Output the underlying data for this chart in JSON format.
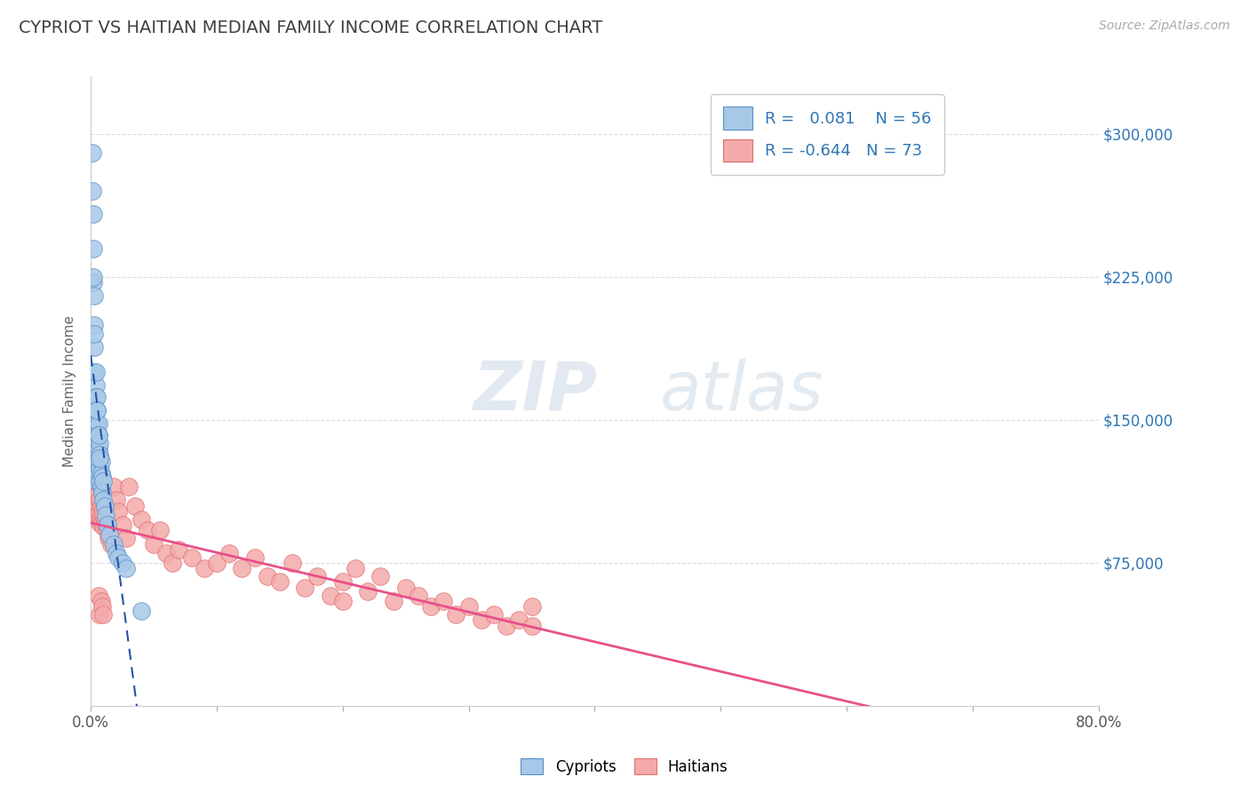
{
  "title": "CYPRIOT VS HAITIAN MEDIAN FAMILY INCOME CORRELATION CHART",
  "source_text": "Source: ZipAtlas.com",
  "ylabel": "Median Family Income",
  "xlim": [
    0.0,
    0.8
  ],
  "ylim": [
    0,
    330000
  ],
  "ytick_right_vals": [
    0,
    75000,
    150000,
    225000,
    300000
  ],
  "ytick_right_labels": [
    "",
    "$75,000",
    "$150,000",
    "$225,000",
    "$300,000"
  ],
  "cypriot_color": "#A8C8E8",
  "haitian_color": "#F4AAAA",
  "cypriot_edge": "#5590C8",
  "haitian_edge": "#E07070",
  "trend_cypriot_color": "#2255AA",
  "trend_haitian_color": "#E8508A",
  "r_cypriot": 0.081,
  "n_cypriot": 56,
  "r_haitian": -0.644,
  "n_haitian": 73,
  "watermark_zip": "ZIP",
  "watermark_atlas": "atlas",
  "background_color": "#FFFFFF",
  "grid_color": "#DDDDDD",
  "axis_label_color": "#666666",
  "right_tick_color": "#2E75B6",
  "title_color": "#404040",
  "legend_color": "#2E75B6",
  "cypriot_x": [
    0.001,
    0.001,
    0.002,
    0.002,
    0.002,
    0.003,
    0.003,
    0.003,
    0.003,
    0.004,
    0.004,
    0.004,
    0.004,
    0.004,
    0.004,
    0.005,
    0.005,
    0.005,
    0.005,
    0.005,
    0.005,
    0.005,
    0.005,
    0.005,
    0.006,
    0.006,
    0.006,
    0.006,
    0.006,
    0.007,
    0.007,
    0.007,
    0.007,
    0.008,
    0.008,
    0.008,
    0.009,
    0.009,
    0.01,
    0.01,
    0.011,
    0.012,
    0.013,
    0.015,
    0.018,
    0.02,
    0.022,
    0.025,
    0.028,
    0.002,
    0.003,
    0.004,
    0.005,
    0.006,
    0.007,
    0.04
  ],
  "cypriot_y": [
    290000,
    270000,
    258000,
    240000,
    222000,
    215000,
    200000,
    188000,
    175000,
    168000,
    162000,
    155000,
    148000,
    142000,
    138000,
    162000,
    155000,
    148000,
    142000,
    138000,
    132000,
    128000,
    122000,
    118000,
    148000,
    142000,
    135000,
    128000,
    122000,
    138000,
    132000,
    125000,
    118000,
    128000,
    122000,
    115000,
    120000,
    112000,
    118000,
    108000,
    105000,
    100000,
    95000,
    90000,
    85000,
    80000,
    78000,
    75000,
    72000,
    225000,
    195000,
    175000,
    155000,
    142000,
    130000,
    50000
  ],
  "haitian_x": [
    0.003,
    0.004,
    0.004,
    0.005,
    0.005,
    0.005,
    0.006,
    0.006,
    0.006,
    0.007,
    0.007,
    0.007,
    0.008,
    0.008,
    0.009,
    0.009,
    0.01,
    0.01,
    0.011,
    0.012,
    0.013,
    0.014,
    0.015,
    0.016,
    0.018,
    0.02,
    0.022,
    0.025,
    0.028,
    0.03,
    0.035,
    0.04,
    0.045,
    0.05,
    0.055,
    0.06,
    0.065,
    0.07,
    0.08,
    0.09,
    0.1,
    0.11,
    0.12,
    0.13,
    0.14,
    0.15,
    0.16,
    0.17,
    0.18,
    0.19,
    0.2,
    0.21,
    0.22,
    0.23,
    0.24,
    0.25,
    0.26,
    0.27,
    0.28,
    0.29,
    0.3,
    0.31,
    0.32,
    0.33,
    0.34,
    0.35,
    0.006,
    0.007,
    0.008,
    0.009,
    0.01,
    0.2,
    0.35
  ],
  "haitian_y": [
    122000,
    118000,
    112000,
    115000,
    108000,
    102000,
    112000,
    105000,
    98000,
    108000,
    102000,
    96000,
    105000,
    98000,
    102000,
    96000,
    100000,
    94000,
    98000,
    95000,
    92000,
    88000,
    90000,
    85000,
    115000,
    108000,
    102000,
    95000,
    88000,
    115000,
    105000,
    98000,
    92000,
    85000,
    92000,
    80000,
    75000,
    82000,
    78000,
    72000,
    75000,
    80000,
    72000,
    78000,
    68000,
    65000,
    75000,
    62000,
    68000,
    58000,
    65000,
    72000,
    60000,
    68000,
    55000,
    62000,
    58000,
    52000,
    55000,
    48000,
    52000,
    45000,
    48000,
    42000,
    45000,
    52000,
    58000,
    48000,
    55000,
    52000,
    48000,
    55000,
    42000
  ]
}
